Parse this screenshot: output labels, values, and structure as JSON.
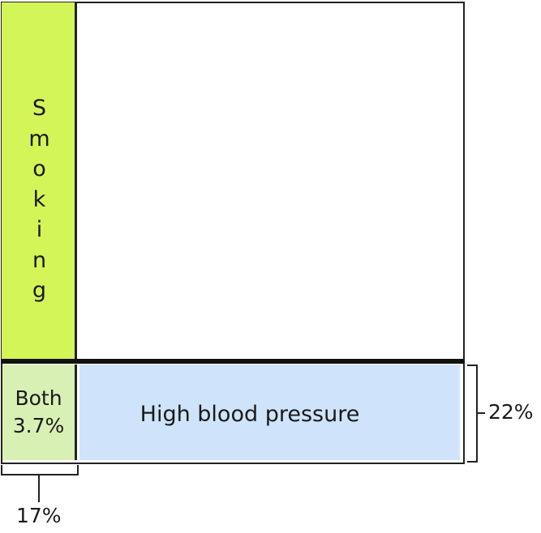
{
  "diagram": {
    "smoking_letters": [
      "S",
      "m",
      "o",
      "k",
      "i",
      "n",
      "g"
    ],
    "both": {
      "line1": "Both",
      "line2": "3.7%"
    },
    "high_blood_pressure": {
      "label": "High blood pressure",
      "share_percent": 22
    },
    "smoking_share_percent": 17,
    "right_brace_label": "22%",
    "bottom_brace_label": "17%",
    "colors": {
      "smoking": "#d4f558",
      "both": "#d9f0b5",
      "high_blood_pressure": "#cfe4fb",
      "outline": "#222222"
    }
  }
}
